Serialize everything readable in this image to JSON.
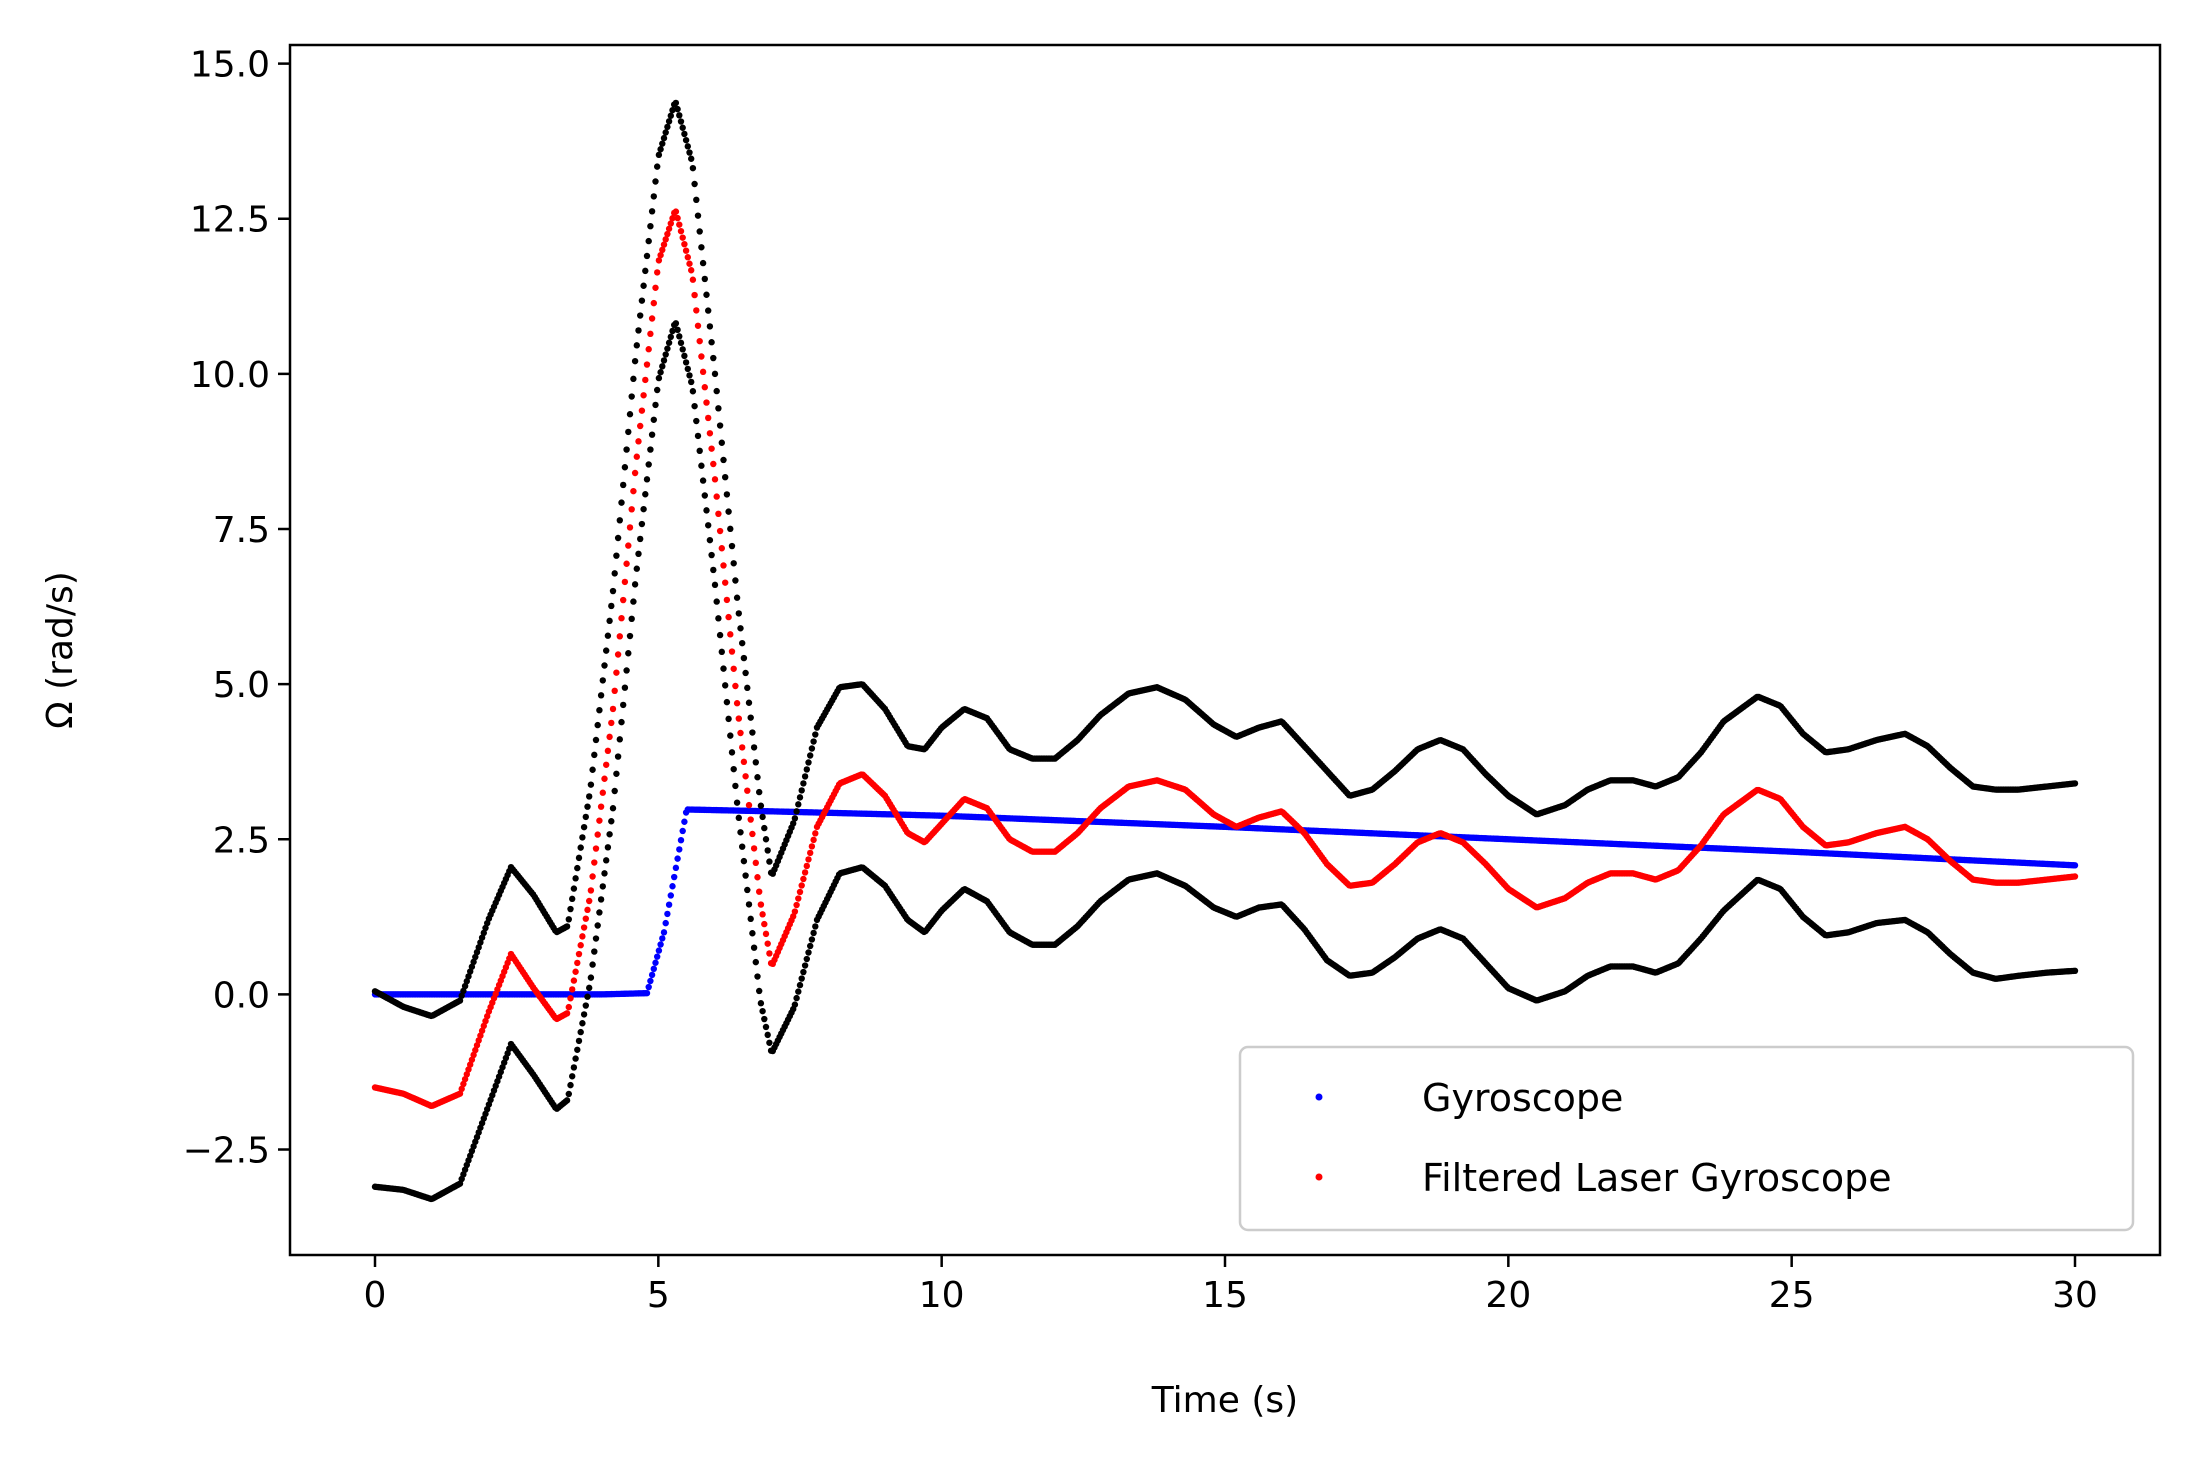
{
  "chart_data": {
    "type": "scatter",
    "xlabel": "Time (s)",
    "ylabel": "Ω (rad/s)",
    "xlim": [
      -1.5,
      31.5
    ],
    "ylim": [
      -4.2,
      15.3
    ],
    "xticks": [
      0,
      5,
      10,
      15,
      20,
      25,
      30
    ],
    "xtick_labels": [
      "0",
      "5",
      "10",
      "15",
      "20",
      "25",
      "30"
    ],
    "yticks": [
      -2.5,
      0,
      2.5,
      5,
      7.5,
      10,
      12.5,
      15
    ],
    "ytick_labels": [
      "−2.5",
      "0.0",
      "2.5",
      "5.0",
      "7.5",
      "10.0",
      "12.5",
      "15.0"
    ],
    "grid": false,
    "legend_position": "lower-right",
    "series": [
      {
        "name": "Gyroscope",
        "color": "#0000ff",
        "in_legend": true,
        "x": [
          0,
          1,
          2,
          3,
          4,
          4.8,
          5.1,
          5.5,
          7,
          10,
          15,
          20,
          25,
          30
        ],
        "y": [
          0,
          0,
          0,
          0,
          0,
          0.02,
          1.0,
          2.98,
          2.95,
          2.88,
          2.7,
          2.5,
          2.3,
          2.08
        ]
      },
      {
        "name": "Filtered Laser Gyroscope",
        "color": "#ff0000",
        "in_legend": true,
        "x": [
          0,
          0.5,
          1,
          1.5,
          2,
          2.4,
          2.8,
          3.2,
          3.4,
          3.8,
          4.2,
          4.6,
          5,
          5.3,
          5.6,
          6,
          6.4,
          6.8,
          7,
          7.4,
          7.8,
          8.2,
          8.6,
          9,
          9.4,
          9.7,
          10,
          10.4,
          10.8,
          11.2,
          11.6,
          12,
          12.4,
          12.8,
          13.3,
          13.8,
          14.3,
          14.8,
          15.2,
          15.6,
          16,
          16.4,
          16.8,
          17.2,
          17.6,
          18,
          18.4,
          18.8,
          19.2,
          19.6,
          20,
          20.5,
          21,
          21.4,
          21.8,
          22.2,
          22.6,
          23,
          23.4,
          23.8,
          24.4,
          24.8,
          25.2,
          25.6,
          26,
          26.5,
          27,
          27.4,
          27.8,
          28.2,
          28.6,
          29,
          29.5,
          30
        ],
        "y": [
          -1.5,
          -1.6,
          -1.8,
          -1.6,
          -0.3,
          0.65,
          0.1,
          -0.4,
          -0.3,
          1.6,
          4.6,
          8.5,
          11.8,
          12.65,
          11.6,
          8.3,
          4.6,
          1.5,
          0.45,
          1.3,
          2.7,
          3.4,
          3.55,
          3.2,
          2.6,
          2.45,
          2.75,
          3.15,
          3.0,
          2.5,
          2.3,
          2.3,
          2.6,
          3.0,
          3.35,
          3.45,
          3.3,
          2.9,
          2.7,
          2.85,
          2.95,
          2.6,
          2.1,
          1.75,
          1.8,
          2.1,
          2.45,
          2.6,
          2.45,
          2.1,
          1.7,
          1.4,
          1.55,
          1.8,
          1.95,
          1.95,
          1.85,
          2.0,
          2.4,
          2.9,
          3.3,
          3.15,
          2.7,
          2.4,
          2.45,
          2.6,
          2.7,
          2.5,
          2.15,
          1.85,
          1.8,
          1.8,
          1.85,
          1.9
        ]
      },
      {
        "name": "",
        "color": "#000000",
        "in_legend": false,
        "x": [
          0,
          0.5,
          1,
          1.5,
          2,
          2.4,
          2.8,
          3.2,
          3.4,
          3.8,
          4.2,
          4.6,
          5,
          5.3,
          5.6,
          6,
          6.4,
          6.8,
          7,
          7.4,
          7.8,
          8.2,
          8.6,
          9,
          9.4,
          9.7,
          10,
          10.4,
          10.8,
          11.2,
          11.6,
          12,
          12.4,
          12.8,
          13.3,
          13.8,
          14.3,
          14.8,
          15.2,
          15.6,
          16,
          16.4,
          16.8,
          17.2,
          17.6,
          18,
          18.4,
          18.8,
          19.2,
          19.6,
          20,
          20.5,
          21,
          21.4,
          21.8,
          22.2,
          22.6,
          23,
          23.4,
          23.8,
          24.4,
          24.8,
          25.2,
          25.6,
          26,
          26.5,
          27,
          27.4,
          27.8,
          28.2,
          28.6,
          29,
          29.5,
          30
        ],
        "y": [
          0.05,
          -0.2,
          -0.35,
          -0.1,
          1.2,
          2.05,
          1.6,
          1.0,
          1.1,
          3.3,
          6.5,
          10.3,
          13.5,
          14.4,
          13.4,
          10.0,
          6.3,
          3.1,
          1.9,
          2.8,
          4.3,
          4.95,
          5.0,
          4.6,
          4.0,
          3.95,
          4.3,
          4.6,
          4.45,
          3.95,
          3.8,
          3.8,
          4.1,
          4.5,
          4.85,
          4.95,
          4.75,
          4.35,
          4.15,
          4.3,
          4.4,
          4.0,
          3.6,
          3.2,
          3.3,
          3.6,
          3.95,
          4.1,
          3.95,
          3.55,
          3.2,
          2.9,
          3.05,
          3.3,
          3.45,
          3.45,
          3.35,
          3.5,
          3.9,
          4.4,
          4.8,
          4.65,
          4.2,
          3.9,
          3.95,
          4.1,
          4.2,
          4.0,
          3.65,
          3.35,
          3.3,
          3.3,
          3.35,
          3.4
        ]
      },
      {
        "name": "",
        "color": "#000000",
        "in_legend": false,
        "x": [
          0,
          0.5,
          1,
          1.5,
          2,
          2.4,
          2.8,
          3.2,
          3.4,
          3.8,
          4.2,
          4.6,
          5,
          5.3,
          5.6,
          6,
          6.4,
          6.8,
          7,
          7.4,
          7.8,
          8.2,
          8.6,
          9,
          9.4,
          9.7,
          10,
          10.4,
          10.8,
          11.2,
          11.6,
          12,
          12.4,
          12.8,
          13.3,
          13.8,
          14.3,
          14.8,
          15.2,
          15.6,
          16,
          16.4,
          16.8,
          17.2,
          17.6,
          18,
          18.4,
          18.8,
          19.2,
          19.6,
          20,
          20.5,
          21,
          21.4,
          21.8,
          22.2,
          22.6,
          23,
          23.4,
          23.8,
          24.4,
          24.8,
          25.2,
          25.6,
          26,
          26.5,
          27,
          27.4,
          27.8,
          28.2,
          28.6,
          29,
          29.5,
          30
        ],
        "y": [
          -3.1,
          -3.15,
          -3.3,
          -3.05,
          -1.8,
          -0.8,
          -1.3,
          -1.85,
          -1.7,
          0.2,
          3.0,
          6.7,
          9.9,
          10.85,
          9.8,
          6.6,
          3.0,
          -0.1,
          -0.95,
          -0.2,
          1.2,
          1.95,
          2.05,
          1.75,
          1.2,
          1.0,
          1.35,
          1.7,
          1.5,
          1.0,
          0.8,
          0.8,
          1.1,
          1.5,
          1.85,
          1.95,
          1.75,
          1.4,
          1.25,
          1.4,
          1.45,
          1.05,
          0.55,
          0.3,
          0.35,
          0.6,
          0.9,
          1.05,
          0.9,
          0.5,
          0.1,
          -0.1,
          0.05,
          0.3,
          0.45,
          0.45,
          0.35,
          0.5,
          0.9,
          1.35,
          1.85,
          1.7,
          1.25,
          0.95,
          1.0,
          1.15,
          1.2,
          1.0,
          0.65,
          0.35,
          0.25,
          0.3,
          0.35,
          0.38
        ]
      }
    ]
  }
}
